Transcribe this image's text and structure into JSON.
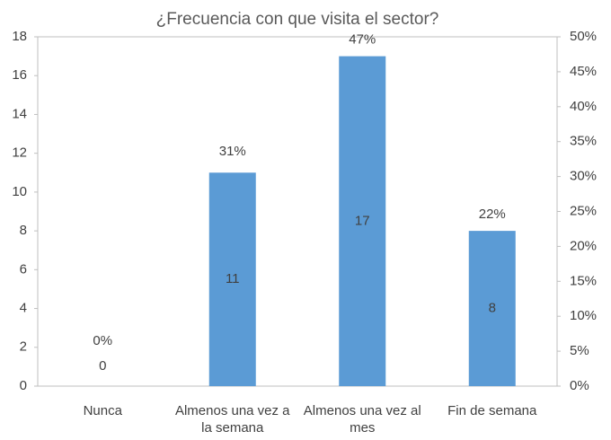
{
  "chart_data": {
    "type": "bar",
    "title": "¿Frecuencia con que visita el sector?",
    "categories": [
      "Nunca",
      "Almenos una vez a la semana",
      "Almenos una vez al mes",
      "Fin de semana"
    ],
    "series": [
      {
        "values": [
          0,
          11,
          17,
          8
        ],
        "color": "#5b9bd5"
      },
      {
        "values": [
          0,
          31,
          47,
          22
        ],
        "value_labels": [
          "0%",
          "31%",
          "47%",
          "22%"
        ],
        "axis": "y2"
      }
    ],
    "ylim": [
      0,
      18
    ],
    "yticks": [
      0,
      2,
      4,
      6,
      8,
      10,
      12,
      14,
      16,
      18
    ],
    "y2lim": [
      0,
      50
    ],
    "y2ticks": [
      {
        "value": 0,
        "label": "0%"
      },
      {
        "value": 5,
        "label": "5%"
      },
      {
        "value": 10,
        "label": "10%"
      },
      {
        "value": 15,
        "label": "15%"
      },
      {
        "value": 20,
        "label": "20%"
      },
      {
        "value": 25,
        "label": "25%"
      },
      {
        "value": 30,
        "label": "30%"
      },
      {
        "value": 35,
        "label": "35%"
      },
      {
        "value": 40,
        "label": "40%"
      },
      {
        "value": 45,
        "label": "45%"
      },
      {
        "value": 50,
        "label": "50%"
      }
    ]
  }
}
